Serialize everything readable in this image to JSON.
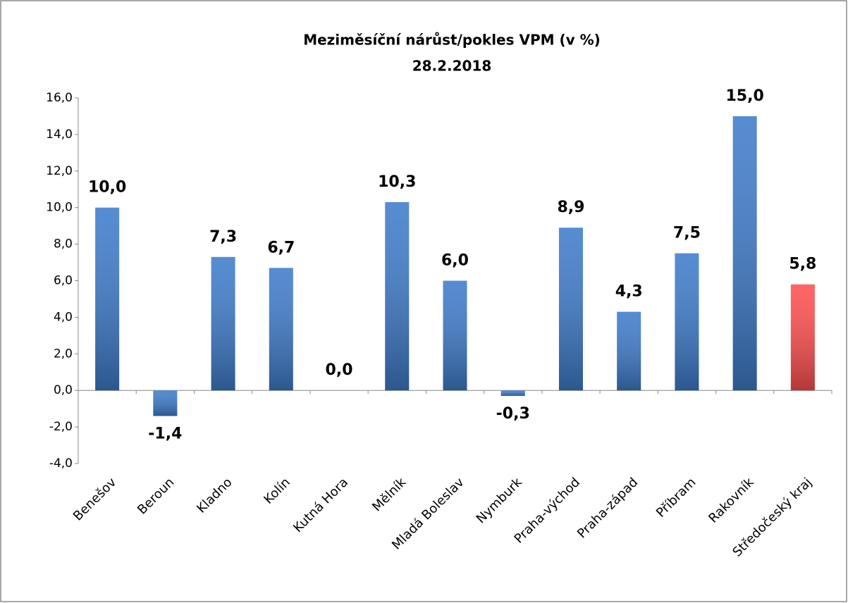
{
  "chart_data": {
    "type": "bar",
    "title": "Meziměsíční nárůst/pokles VPM (v %)",
    "subtitle": "28.2.2018",
    "categories": [
      "Benešov",
      "Beroun",
      "Kladno",
      "Kolín",
      "Kutná Hora",
      "Mělník",
      "Mladá Boleslav",
      "Nymburk",
      "Praha-východ",
      "Praha-západ",
      "Příbram",
      "Rakovník",
      "Středočeský kraj"
    ],
    "values": [
      10.0,
      -1.4,
      7.3,
      6.7,
      0.0,
      10.3,
      6.0,
      -0.3,
      8.9,
      4.3,
      7.5,
      15.0,
      5.8
    ],
    "value_labels": [
      "10,0",
      "-1,4",
      "7,3",
      "6,7",
      "0,0",
      "10,3",
      "6,0",
      "-0,3",
      "8,9",
      "4,3",
      "7,5",
      "15,0",
      "5,8"
    ],
    "colors": [
      "#3f7ccb",
      "#3f7ccb",
      "#3f7ccb",
      "#3f7ccb",
      "#3f7ccb",
      "#3f7ccb",
      "#3f7ccb",
      "#3f7ccb",
      "#3f7ccb",
      "#3f7ccb",
      "#3f7ccb",
      "#3f7ccb",
      "#ff4f4f"
    ],
    "ylim": [
      -4,
      16
    ],
    "yticks": [
      {
        "value": -4,
        "label": "-4,0"
      },
      {
        "value": -2,
        "label": "-2,0"
      },
      {
        "value": 0,
        "label": "0,0"
      },
      {
        "value": 2,
        "label": "2,0"
      },
      {
        "value": 4,
        "label": "4,0"
      },
      {
        "value": 6,
        "label": "6,0"
      },
      {
        "value": 8,
        "label": "8,0"
      },
      {
        "value": 10,
        "label": "10,0"
      },
      {
        "value": 12,
        "label": "12,0"
      },
      {
        "value": 14,
        "label": "14,0"
      },
      {
        "value": 16,
        "label": "16,0"
      }
    ],
    "grid": false
  }
}
